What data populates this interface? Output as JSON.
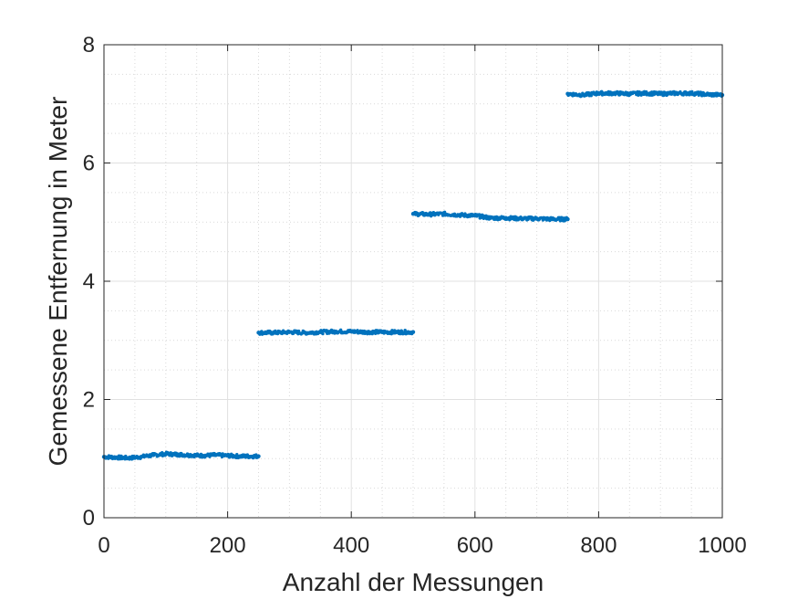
{
  "chart_data": {
    "type": "scatter",
    "title": "",
    "xlabel": "Anzahl der Messungen",
    "ylabel": "Gemessene Entfernung in Meter",
    "xlim": [
      0,
      1000
    ],
    "ylim": [
      0,
      8
    ],
    "x_ticks": [
      "0",
      "200",
      "400",
      "600",
      "800",
      "1000"
    ],
    "y_ticks": [
      "0",
      "2",
      "4",
      "6",
      "8"
    ],
    "grid": true,
    "minor_grid": true,
    "color": "#0072BD",
    "series": [
      {
        "x": [
          0,
          20,
          40,
          60,
          80,
          100,
          120,
          140,
          160,
          180,
          200,
          220,
          250
        ],
        "y": [
          1.03,
          1.02,
          1.01,
          1.03,
          1.06,
          1.08,
          1.07,
          1.06,
          1.05,
          1.06,
          1.05,
          1.04,
          1.04
        ]
      },
      {
        "x": [
          250,
          275,
          300,
          325,
          350,
          375,
          400,
          425,
          450,
          475,
          500
        ],
        "y": [
          3.13,
          3.13,
          3.14,
          3.13,
          3.14,
          3.15,
          3.15,
          3.14,
          3.14,
          3.14,
          3.14
        ]
      },
      {
        "x": [
          500,
          525,
          550,
          575,
          600,
          625,
          650,
          675,
          700,
          725,
          750
        ],
        "y": [
          5.14,
          5.13,
          5.14,
          5.12,
          5.11,
          5.07,
          5.07,
          5.06,
          5.06,
          5.05,
          5.05
        ]
      },
      {
        "x": [
          750,
          775,
          800,
          825,
          850,
          875,
          900,
          925,
          950,
          975,
          1000
        ],
        "y": [
          7.17,
          7.15,
          7.18,
          7.18,
          7.17,
          7.18,
          7.17,
          7.18,
          7.18,
          7.16,
          7.15
        ]
      }
    ]
  }
}
